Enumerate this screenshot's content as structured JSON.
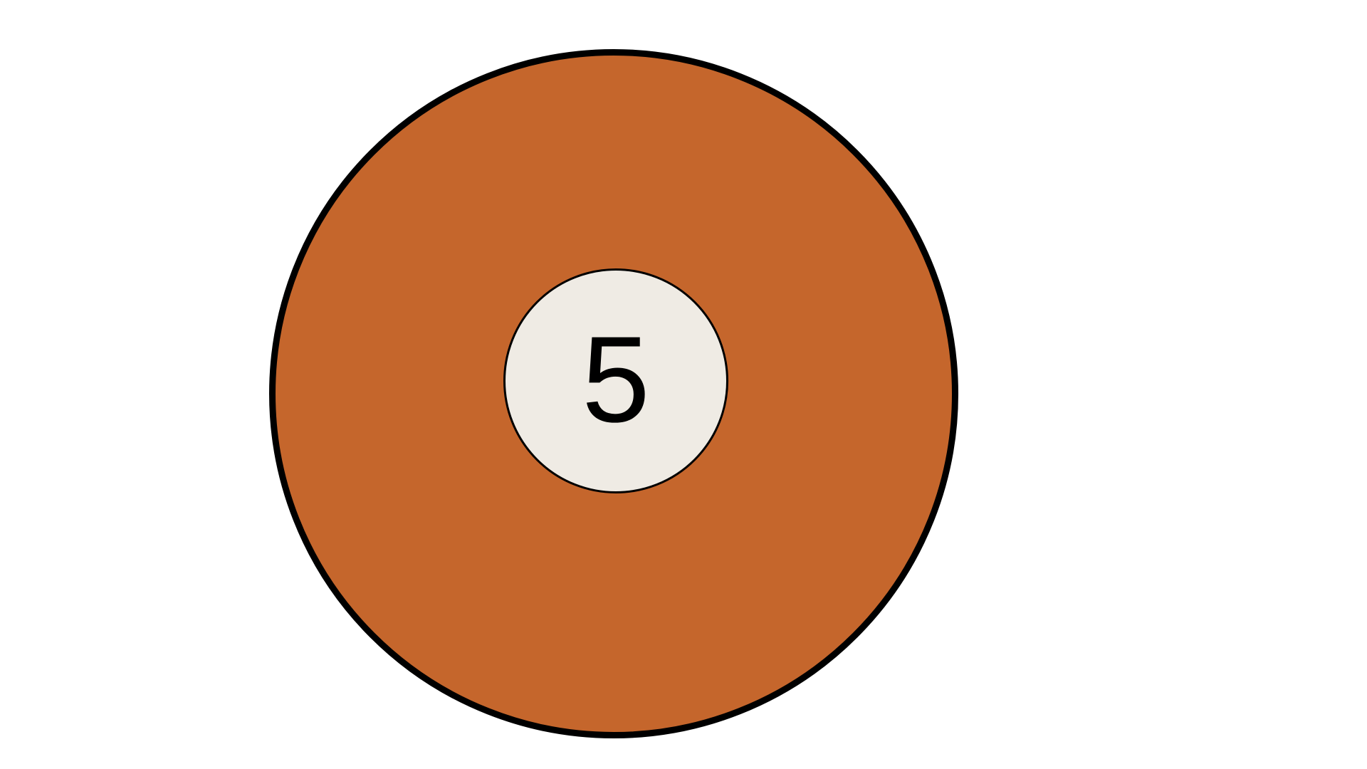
{
  "ball": {
    "number": "5",
    "colors": {
      "background": "#ffffff",
      "ball_fill": "#c5662c",
      "outline": "#000000",
      "number_disc_fill": "#efebe4",
      "number_text": "#000000"
    }
  }
}
